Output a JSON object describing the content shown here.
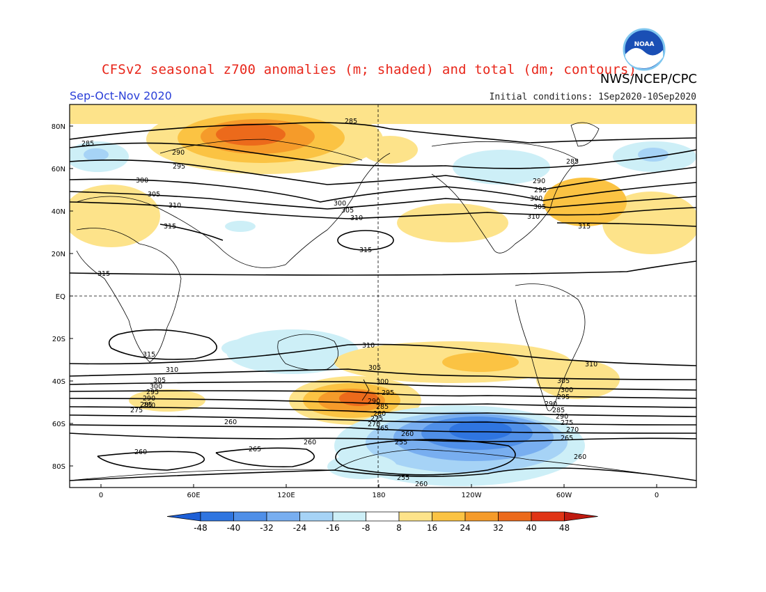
{
  "header": {
    "title": "CFSv2 seasonal z700 anomalies (m; shaded) and total (dm; contours)",
    "agency": "NWS/NCEP/CPC",
    "season": "Sep-Oct-Nov 2020",
    "initial_conditions": "Initial conditions: 1Sep2020-10Sep2020"
  },
  "logo": {
    "text": "NOAA"
  },
  "axes": {
    "lat_ticks": [
      "80N",
      "60N",
      "40N",
      "20N",
      "EQ",
      "20S",
      "40S",
      "60S",
      "80S"
    ],
    "lon_ticks": [
      "0",
      "60E",
      "120E",
      "180",
      "120W",
      "60W",
      "0"
    ]
  },
  "colorbar": {
    "labels": [
      "-48",
      "-40",
      "-32",
      "-24",
      "-16",
      "-8",
      "8",
      "16",
      "24",
      "32",
      "40",
      "48"
    ],
    "colors": [
      "#1d5fd6",
      "#2f75e0",
      "#4f8fe8",
      "#78aef0",
      "#a6d3f6",
      "#cdeff7",
      "#ffffff",
      "#fde38a",
      "#fbc343",
      "#f59b2a",
      "#ec6a1b",
      "#e03415",
      "#bf1a10"
    ]
  },
  "contour_labels": [
    "285",
    "290",
    "295",
    "300",
    "305",
    "310",
    "315",
    "260",
    "265",
    "270",
    "275",
    "280",
    "255"
  ]
}
